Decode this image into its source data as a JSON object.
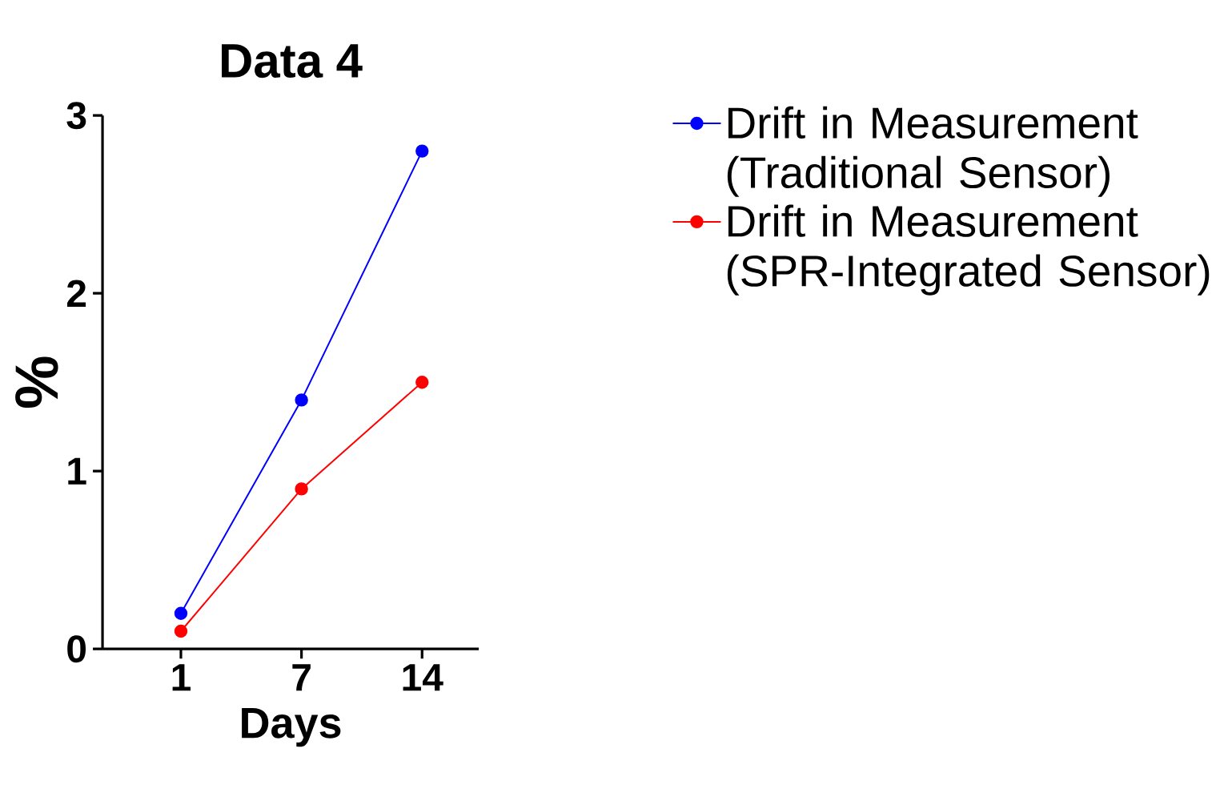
{
  "chart_data": {
    "type": "line",
    "title": "Data 4",
    "xlabel": "Days",
    "ylabel": "%",
    "categories": [
      "1",
      "7",
      "14"
    ],
    "series": [
      {
        "name": "Drift in Measurement (Traditional Sensor)",
        "color": "#0000ff",
        "values": [
          0.2,
          1.4,
          2.8
        ]
      },
      {
        "name": "Drift in Measurement (SPR-Integrated Sensor)",
        "color": "#ff0000",
        "values": [
          0.1,
          0.9,
          1.5
        ]
      }
    ],
    "ylim": [
      0,
      3
    ],
    "yticks": [
      0,
      1,
      2,
      3
    ],
    "grid": false,
    "legend": "right",
    "marker": "circle",
    "line_style": "solid"
  }
}
